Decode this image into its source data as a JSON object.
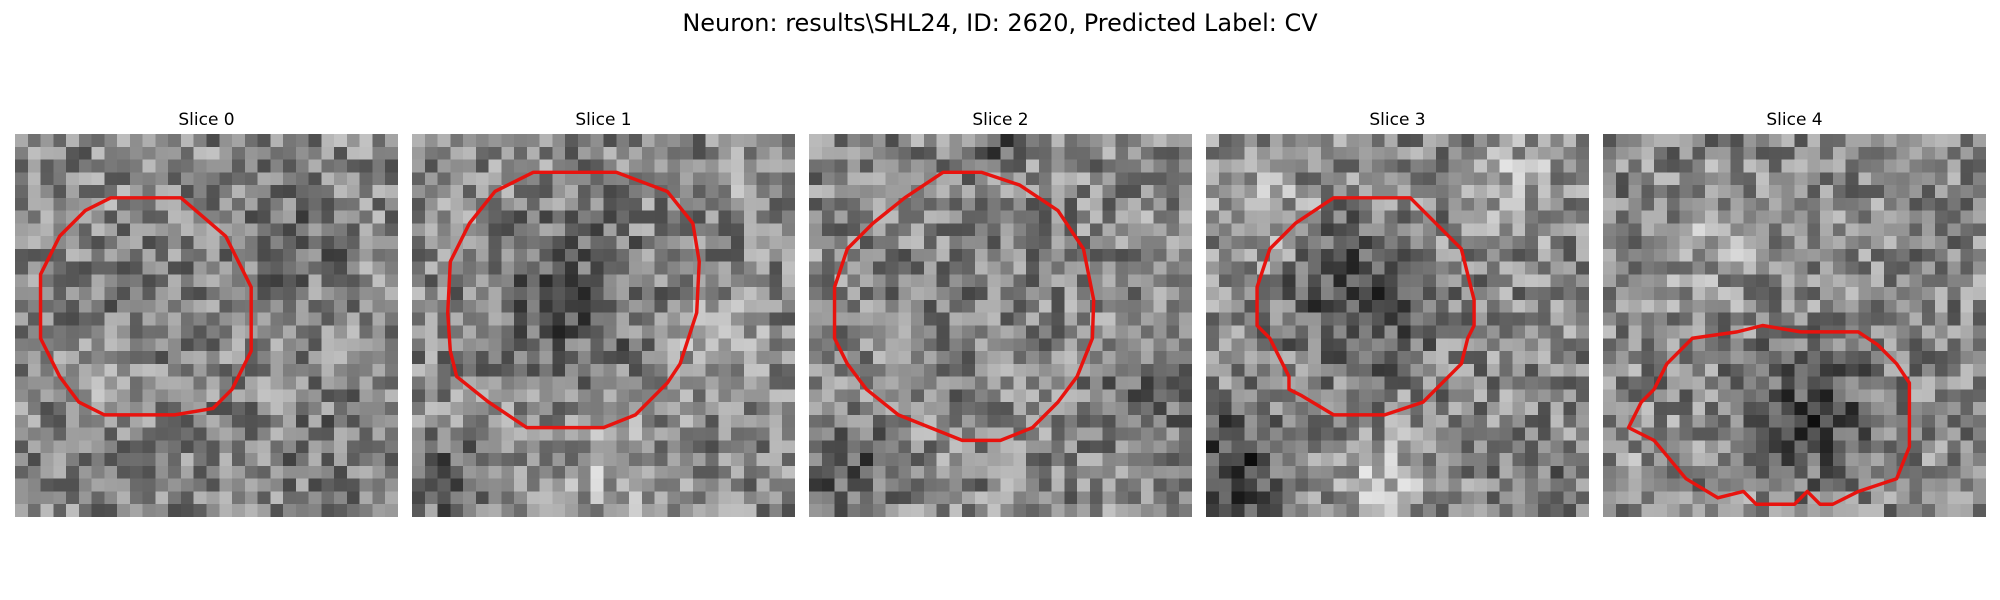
{
  "figure": {
    "title": "Neuron: results\\SHL24, ID: 2620, Predicted Label: CV"
  },
  "colors": {
    "contour": "#e8130e",
    "background": "#ffffff"
  },
  "panels": [
    {
      "title": "Slice 0"
    },
    {
      "title": "Slice 1"
    },
    {
      "title": "Slice 2"
    },
    {
      "title": "Slice 3"
    },
    {
      "title": "Slice 4"
    }
  ]
}
